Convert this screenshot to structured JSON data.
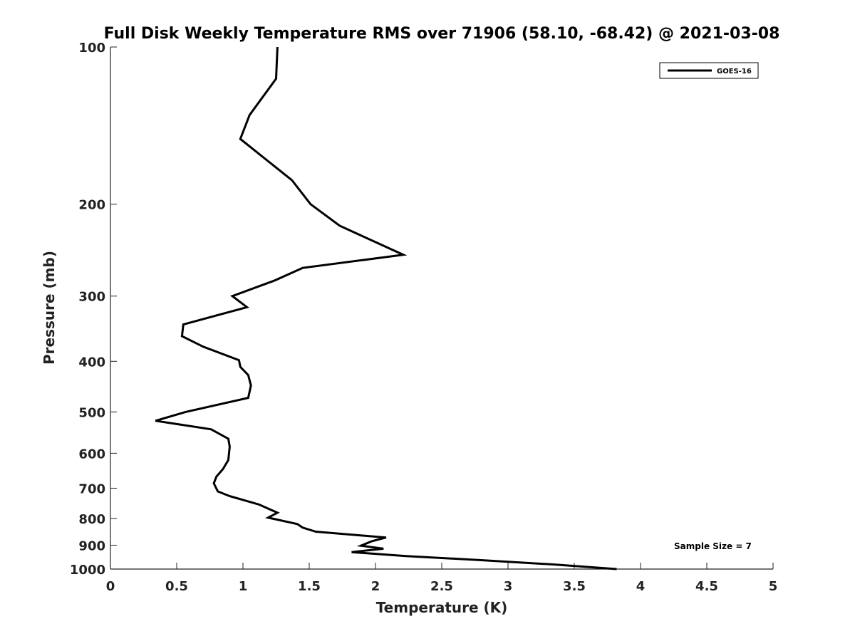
{
  "chart_data": {
    "type": "line",
    "title": "Full Disk Weekly Temperature RMS over 71906 (58.10, -68.42) @ 2021-03-08",
    "xlabel": "Temperature (K)",
    "ylabel": "Pressure (mb)",
    "xlim": [
      0,
      5
    ],
    "ylim": [
      100,
      1000
    ],
    "y_scale": "log",
    "y_reversed": true,
    "x_ticks": [
      "0",
      "0.5",
      "1",
      "1.5",
      "2",
      "2.5",
      "3",
      "3.5",
      "4",
      "4.5",
      "5"
    ],
    "y_ticks": [
      "100",
      "200",
      "300",
      "400",
      "500",
      "600",
      "700",
      "800",
      "900",
      "1000"
    ],
    "grid": false,
    "legend_position": "top-right",
    "annotation": "Sample Size = 7",
    "series": [
      {
        "name": "GOES-16",
        "color": "#000000",
        "x": [
          1.26,
          1.25,
          1.05,
          0.98,
          1.37,
          1.51,
          1.73,
          2.21,
          1.45,
          1.24,
          0.92,
          1.03,
          0.55,
          0.54,
          0.7,
          0.97,
          0.98,
          1.04,
          1.06,
          1.04,
          0.57,
          0.34,
          0.76,
          0.89,
          0.9,
          0.89,
          0.85,
          0.8,
          0.78,
          0.81,
          0.9,
          1.12,
          1.26,
          1.19,
          1.41,
          1.45,
          1.55,
          2.08,
          1.97,
          1.89,
          2.06,
          1.82,
          2.23,
          2.82,
          3.35,
          3.82
        ],
        "y": [
          100,
          115,
          135,
          150,
          180,
          200,
          220,
          250,
          265,
          280,
          300,
          315,
          340,
          358,
          375,
          398,
          410,
          425,
          445,
          470,
          500,
          520,
          540,
          563,
          583,
          618,
          643,
          665,
          685,
          710,
          725,
          752,
          780,
          797,
          820,
          833,
          848,
          870,
          885,
          902,
          914,
          928,
          944,
          962,
          980,
          1000
        ]
      }
    ]
  }
}
